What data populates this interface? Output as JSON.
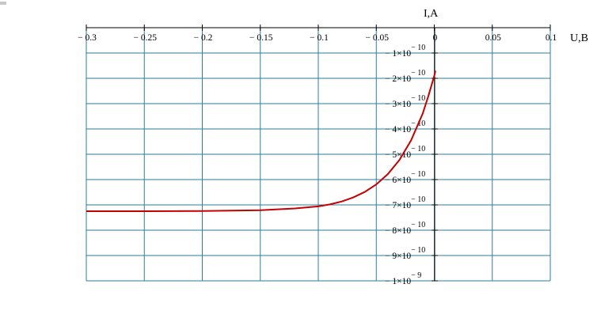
{
  "chart_data": {
    "type": "line",
    "title": "",
    "xlabel": "U,B",
    "ylabel": "I,A",
    "xlim": [
      -0.3,
      0.1
    ],
    "ylim": [
      -1e-09,
      0
    ],
    "grid": true,
    "x_ticks": [
      {
        "value": -0.3,
        "label": "− 0.3"
      },
      {
        "value": -0.25,
        "label": "− 0.25"
      },
      {
        "value": -0.2,
        "label": "− 0.2"
      },
      {
        "value": -0.15,
        "label": "− 0.15"
      },
      {
        "value": -0.1,
        "label": "− 0.1"
      },
      {
        "value": -0.05,
        "label": "− 0.05"
      },
      {
        "value": 0,
        "label": "0"
      },
      {
        "value": 0.05,
        "label": "0.05"
      },
      {
        "value": 0.1,
        "label": "0.1"
      }
    ],
    "y_ticks": [
      {
        "value": -1e-10,
        "mant": "− 1×10",
        "exp": "− 10"
      },
      {
        "value": -2e-10,
        "mant": "− 2×10",
        "exp": "− 10"
      },
      {
        "value": -3e-10,
        "mant": "− 3×10",
        "exp": "− 10"
      },
      {
        "value": -4e-10,
        "mant": "− 4×10",
        "exp": "− 10"
      },
      {
        "value": -5e-10,
        "mant": "− 5×10",
        "exp": "− 10"
      },
      {
        "value": -6e-10,
        "mant": "− 6×10",
        "exp": "− 10"
      },
      {
        "value": -7e-10,
        "mant": "− 7×10",
        "exp": "− 10"
      },
      {
        "value": -8e-10,
        "mant": "− 8×10",
        "exp": "− 10"
      },
      {
        "value": -9e-10,
        "mant": "− 9×10",
        "exp": "− 10"
      },
      {
        "value": -1e-09,
        "mant": "− 1×10",
        "exp": "− 9"
      }
    ],
    "series": [
      {
        "color": "#c40000",
        "x": [
          -0.3,
          -0.25,
          -0.2,
          -0.15,
          -0.12,
          -0.1,
          -0.09,
          -0.08,
          -0.07,
          -0.06,
          -0.05,
          -0.04,
          -0.03,
          -0.02,
          -0.01,
          -0.005,
          0.0,
          0.001
        ],
        "y": [
          -7.25e-10,
          -7.25e-10,
          -7.24e-10,
          -7.21e-10,
          -7.14e-10,
          -7.06e-10,
          -6.98e-10,
          -6.87e-10,
          -6.71e-10,
          -6.49e-10,
          -6.19e-10,
          -5.78e-10,
          -5.22e-10,
          -4.45e-10,
          -3.4e-10,
          -2.68e-10,
          -1.9e-10,
          -1.7e-10
        ]
      }
    ]
  }
}
